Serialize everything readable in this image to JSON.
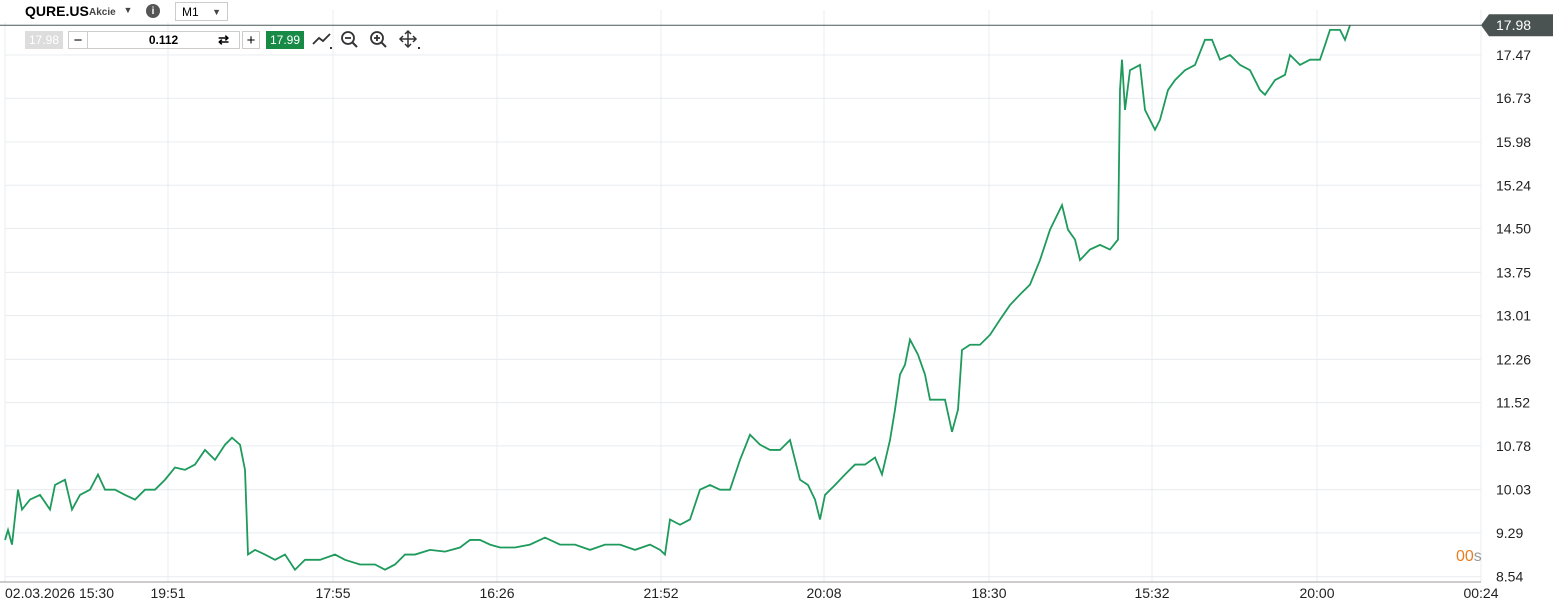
{
  "toolbar": {
    "symbol": "QURE.US",
    "asset_class": "Akcie",
    "timeframe": "M1",
    "bid": "17.98",
    "volume": "0.112",
    "ask": "17.99"
  },
  "countdown": "00",
  "countdown_unit": "s",
  "chart_data": {
    "type": "line",
    "last_price": 17.98,
    "series": [
      {
        "color": "#1e9a5c",
        "x": [
          0,
          3,
          7,
          13,
          17,
          25,
          35,
          45,
          50,
          60,
          67,
          75,
          85,
          93,
          100,
          110,
          120,
          130,
          140,
          150,
          160,
          170,
          180,
          190,
          200,
          210,
          220,
          227,
          235,
          240,
          243,
          250,
          260,
          270,
          280,
          290,
          300,
          315,
          330,
          340,
          355,
          370,
          380,
          390,
          400,
          410,
          425,
          440,
          455,
          465,
          475,
          485,
          495,
          510,
          525,
          540,
          555,
          570,
          585,
          600,
          615,
          630,
          645,
          655,
          660,
          665,
          675,
          685,
          695,
          705,
          715,
          725,
          735,
          745,
          755,
          765,
          775,
          785,
          795,
          803,
          810,
          815,
          820,
          830,
          840,
          850,
          860,
          870,
          877,
          885,
          890,
          895,
          900,
          905,
          913,
          920,
          925,
          935,
          940,
          947,
          953,
          957,
          965,
          975,
          985,
          995,
          1005,
          1015,
          1025,
          1035,
          1045,
          1057,
          1063,
          1070,
          1075,
          1085,
          1095,
          1105,
          1113,
          1115,
          1117,
          1120,
          1125,
          1135,
          1140,
          1150,
          1155,
          1163,
          1170,
          1180,
          1190,
          1200,
          1207,
          1215,
          1225,
          1235,
          1245,
          1255,
          1260,
          1270,
          1280,
          1285,
          1295,
          1305,
          1315,
          1320,
          1325,
          1335,
          1340,
          1345
        ],
        "values": [
          9.17,
          9.34,
          9.09,
          10.03,
          9.69,
          9.86,
          9.94,
          9.69,
          10.11,
          10.2,
          9.69,
          9.94,
          10.03,
          10.29,
          10.03,
          10.03,
          9.94,
          9.86,
          10.03,
          10.03,
          10.2,
          10.41,
          10.37,
          10.46,
          10.71,
          10.54,
          10.8,
          10.92,
          10.8,
          10.37,
          8.92,
          9.0,
          8.92,
          8.83,
          8.92,
          8.66,
          8.83,
          8.83,
          8.92,
          8.83,
          8.75,
          8.75,
          8.66,
          8.75,
          8.92,
          8.92,
          9.0,
          8.97,
          9.04,
          9.17,
          9.17,
          9.09,
          9.04,
          9.04,
          9.09,
          9.21,
          9.09,
          9.09,
          9.0,
          9.09,
          9.09,
          9.0,
          9.09,
          9.0,
          8.92,
          9.52,
          9.43,
          9.52,
          10.03,
          10.11,
          10.03,
          10.03,
          10.54,
          10.97,
          10.8,
          10.71,
          10.71,
          10.88,
          10.2,
          10.11,
          9.86,
          9.52,
          9.94,
          10.11,
          10.29,
          10.46,
          10.46,
          10.58,
          10.29,
          10.88,
          11.4,
          12.0,
          12.17,
          12.6,
          12.34,
          12.0,
          11.57,
          11.57,
          11.57,
          11.02,
          11.4,
          12.42,
          12.51,
          12.51,
          12.68,
          12.94,
          13.19,
          13.37,
          13.54,
          13.96,
          14.48,
          14.9,
          14.48,
          14.31,
          13.96,
          14.14,
          14.22,
          14.14,
          14.31,
          16.87,
          17.39,
          16.53,
          17.21,
          17.3,
          16.53,
          16.19,
          16.36,
          16.87,
          17.04,
          17.21,
          17.3,
          17.73,
          17.73,
          17.39,
          17.47,
          17.3,
          17.21,
          16.87,
          16.79,
          17.04,
          17.13,
          17.47,
          17.3,
          17.39,
          17.39,
          17.64,
          17.9,
          17.9,
          17.73,
          17.98
        ]
      }
    ],
    "xlim": [
      0,
      1476
    ],
    "xticks": [
      {
        "value": 0,
        "label": "02.03.2026 15:30"
      },
      {
        "value": 163,
        "label": "19:51"
      },
      {
        "value": 328,
        "label": "17:55"
      },
      {
        "value": 492,
        "label": "16:26"
      },
      {
        "value": 656,
        "label": "21:52"
      },
      {
        "value": 819,
        "label": "20:08"
      },
      {
        "value": 984,
        "label": "18:30"
      },
      {
        "value": 1147,
        "label": "15:32"
      },
      {
        "value": 1312,
        "label": "20:00"
      },
      {
        "value": 1476,
        "label": "00:24"
      }
    ],
    "ylim": [
      8.45,
      18.24
    ],
    "yticks": [
      8.54,
      9.29,
      10.03,
      10.78,
      11.52,
      12.26,
      13.01,
      13.75,
      {
        "value": 14.5,
        "label": "14.50"
      },
      15.24,
      15.98,
      16.73,
      17.47
    ],
    "grid": true
  }
}
